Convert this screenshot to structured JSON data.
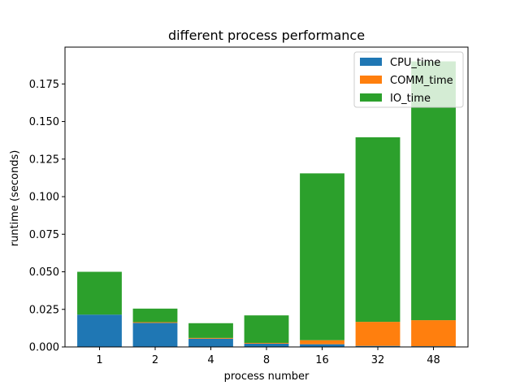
{
  "chart_data": {
    "type": "bar",
    "stacked": true,
    "title": "different process performance",
    "xlabel": "process number",
    "ylabel": "runtime (seconds)",
    "categories": [
      "1",
      "2",
      "4",
      "8",
      "16",
      "32",
      "48"
    ],
    "series": [
      {
        "name": "CPU_time",
        "color": "#1f77b4",
        "values": [
          0.0215,
          0.016,
          0.0055,
          0.0022,
          0.0018,
          0.0007,
          0.0005
        ]
      },
      {
        "name": "COMM_time",
        "color": "#ff7f0e",
        "values": [
          0.0,
          0.0005,
          0.0005,
          0.0005,
          0.0027,
          0.016,
          0.0173
        ]
      },
      {
        "name": "IO_time",
        "color": "#2ca02c",
        "values": [
          0.0285,
          0.009,
          0.0098,
          0.0183,
          0.111,
          0.1228,
          0.1722
        ]
      }
    ],
    "ylim": [
      0,
      0.1995
    ],
    "yticks": [
      "0.000",
      "0.025",
      "0.050",
      "0.075",
      "0.100",
      "0.125",
      "0.150",
      "0.175"
    ],
    "ytick_values": [
      0,
      0.025,
      0.05,
      0.075,
      0.1,
      0.125,
      0.15,
      0.175
    ],
    "grid": false,
    "legend_position": "top-right"
  }
}
